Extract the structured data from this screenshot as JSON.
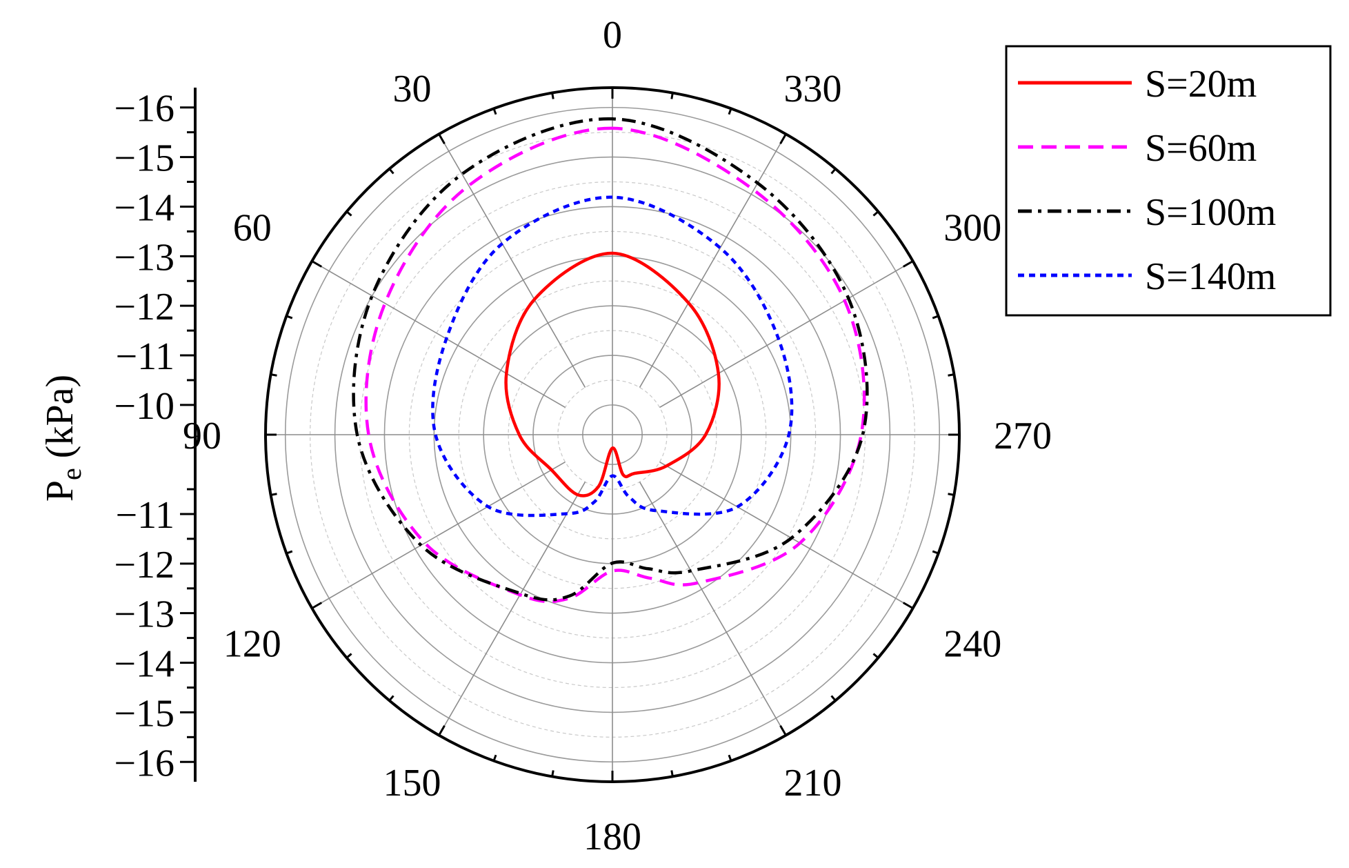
{
  "chart_data": {
    "type": "polar-line",
    "ylabel": "P",
    "ylabel_sub": "e",
    "ylabel_unit": " (kPa)",
    "angular_axis": {
      "direction": "counterclockwise",
      "zero_at": "top",
      "tick_labels": [
        "0",
        "30",
        "60",
        "90",
        "120",
        "150",
        "180",
        "210",
        "240",
        "270",
        "300",
        "330"
      ]
    },
    "radial_axis": {
      "range": [
        -9.4,
        -16.4
      ],
      "tick_labels_upper": [
        "-16",
        "-15",
        "-14",
        "-13",
        "-12",
        "-11",
        "-10"
      ],
      "tick_labels_lower": [
        "-11",
        "-12",
        "-13",
        "-14",
        "-15",
        "-16"
      ],
      "tick_values_upper": [
        -16,
        -15,
        -14,
        -13,
        -12,
        -11,
        -10
      ],
      "tick_values_lower": [
        -11,
        -12,
        -13,
        -14,
        -15,
        -16
      ]
    },
    "grid": true,
    "legend_position": "top-right",
    "theta": [
      0,
      30,
      60,
      90,
      120,
      150,
      165,
      180,
      195,
      210,
      240,
      270,
      300,
      330
    ],
    "series": [
      {
        "name": "S=20m",
        "color": "#ff0000",
        "dash": "solid",
        "values": [
          -13.06,
          -12.55,
          -11.87,
          -11.28,
          -10.82,
          -10.8,
          -10.48,
          -9.67,
          -10.24,
          -10.3,
          -10.66,
          -11.28,
          -11.87,
          -12.47
        ]
      },
      {
        "name": "S=60m",
        "color": "#ff00ff",
        "dash": "dash",
        "values": [
          -15.58,
          -15.2,
          -14.7,
          -14.32,
          -13.77,
          -13.13,
          -12.82,
          -12.15,
          -12.4,
          -12.85,
          -13.77,
          -14.42,
          -14.81,
          -15.1
        ]
      },
      {
        "name": "S=100m",
        "color": "#000000",
        "dash": "dashdot",
        "values": [
          -15.77,
          -15.47,
          -15.0,
          -14.55,
          -13.86,
          -13.1,
          -12.77,
          -11.99,
          -12.2,
          -12.57,
          -13.57,
          -14.45,
          -14.9,
          -15.26
        ]
      },
      {
        "name": "S=140m",
        "color": "#0000ff",
        "dash": "dot",
        "values": [
          -14.19,
          -13.85,
          -13.27,
          -12.97,
          -12.3,
          -11.24,
          -10.8,
          -10.23,
          -10.7,
          -11.17,
          -12.31,
          -12.96,
          -13.27,
          -13.75
        ]
      }
    ]
  }
}
